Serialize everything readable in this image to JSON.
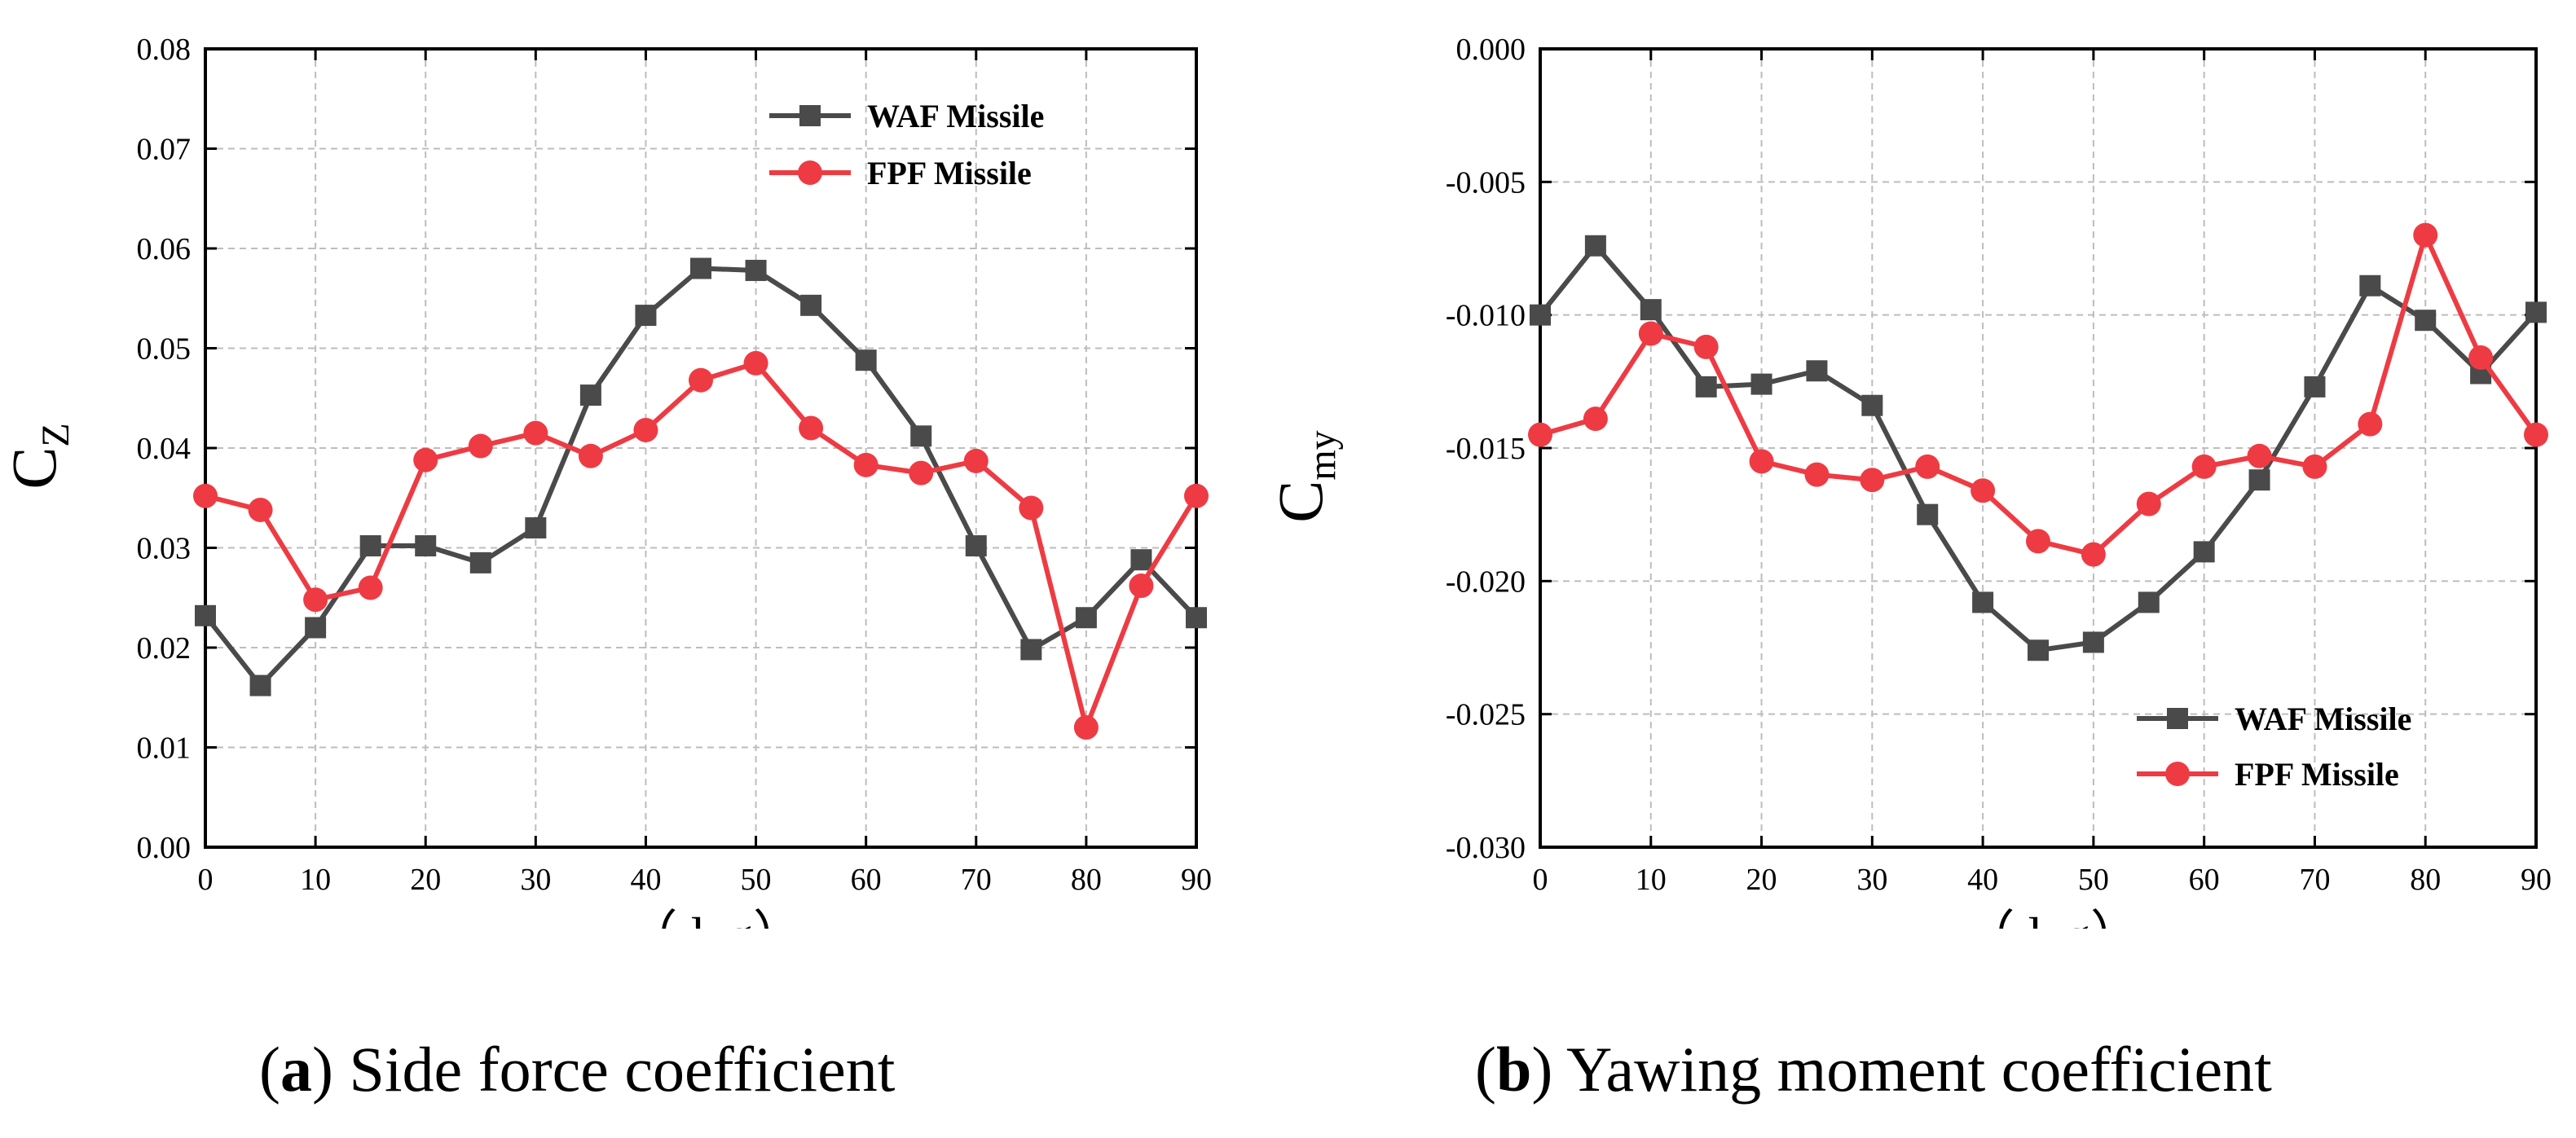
{
  "colors": {
    "waf": "#4a4a4a",
    "fpf": "#ee3b43",
    "grid": "#bdbdbd",
    "axis": "#000000"
  },
  "chart_data": [
    {
      "type": "line",
      "caption_tag": "a",
      "caption_text": "Side force coefficient",
      "ylabel_main": "C",
      "ylabel_sub": "Z",
      "xlabel_symbol": "φ",
      "xlabel_unit": "（deg）",
      "x": [
        0,
        5,
        10,
        15,
        20,
        25,
        30,
        35,
        40,
        45,
        50,
        55,
        60,
        65,
        70,
        75,
        80,
        85,
        90
      ],
      "xlim": [
        0,
        90
      ],
      "ylim": [
        0,
        0.08
      ],
      "xticks": [
        "0",
        "10",
        "20",
        "30",
        "40",
        "50",
        "60",
        "70",
        "80",
        "90"
      ],
      "yticks": [
        "0.00",
        "0.01",
        "0.02",
        "0.03",
        "0.04",
        "0.05",
        "0.06",
        "0.07",
        "0.08"
      ],
      "grid": true,
      "legend_position": "top-right",
      "series": [
        {
          "name": "WAF Missile",
          "marker": "square",
          "color_key": "waf",
          "values": [
            0.0232,
            0.0162,
            0.022,
            0.0302,
            0.0302,
            0.0285,
            0.032,
            0.0453,
            0.0533,
            0.058,
            0.0578,
            0.0543,
            0.0488,
            0.0412,
            0.0302,
            0.0198,
            0.023,
            0.0288,
            0.023
          ]
        },
        {
          "name": "FPF Missile",
          "marker": "circle",
          "color_key": "fpf",
          "values": [
            0.0352,
            0.0338,
            0.0248,
            0.026,
            0.0388,
            0.0402,
            0.0415,
            0.0392,
            0.0418,
            0.0468,
            0.0485,
            0.042,
            0.0383,
            0.0375,
            0.0387,
            0.034,
            0.012,
            0.0262,
            0.0352
          ]
        }
      ]
    },
    {
      "type": "line",
      "caption_tag": "b",
      "caption_text": "Yawing moment coefficient",
      "ylabel_main": "C",
      "ylabel_sub": "my",
      "xlabel_symbol": "φ",
      "xlabel_unit": "（deg）",
      "x": [
        0,
        5,
        10,
        15,
        20,
        25,
        30,
        35,
        40,
        45,
        50,
        55,
        60,
        65,
        70,
        75,
        80,
        85,
        90
      ],
      "xlim": [
        0,
        90
      ],
      "ylim": [
        -0.03,
        0.0
      ],
      "xticks": [
        "0",
        "10",
        "20",
        "30",
        "40",
        "50",
        "60",
        "70",
        "80",
        "90"
      ],
      "yticks": [
        "-0.030",
        "-0.025",
        "-0.020",
        "-0.015",
        "-0.010",
        "-0.005",
        "0.000"
      ],
      "grid": true,
      "legend_position": "bottom-right",
      "series": [
        {
          "name": "WAF Missile",
          "marker": "square",
          "color_key": "waf",
          "values": [
            -0.01,
            -0.0074,
            -0.0098,
            -0.0127,
            -0.0126,
            -0.0121,
            -0.0134,
            -0.0175,
            -0.0208,
            -0.0226,
            -0.0223,
            -0.0208,
            -0.0189,
            -0.0162,
            -0.0127,
            -0.0089,
            -0.0102,
            -0.0122,
            -0.0099
          ]
        },
        {
          "name": "FPF Missile",
          "marker": "circle",
          "color_key": "fpf",
          "values": [
            -0.0145,
            -0.0139,
            -0.0107,
            -0.0112,
            -0.0155,
            -0.016,
            -0.0162,
            -0.0157,
            -0.0166,
            -0.0185,
            -0.019,
            -0.0171,
            -0.0157,
            -0.0153,
            -0.0157,
            -0.0141,
            -0.007,
            -0.0116,
            -0.0145
          ]
        }
      ]
    }
  ]
}
